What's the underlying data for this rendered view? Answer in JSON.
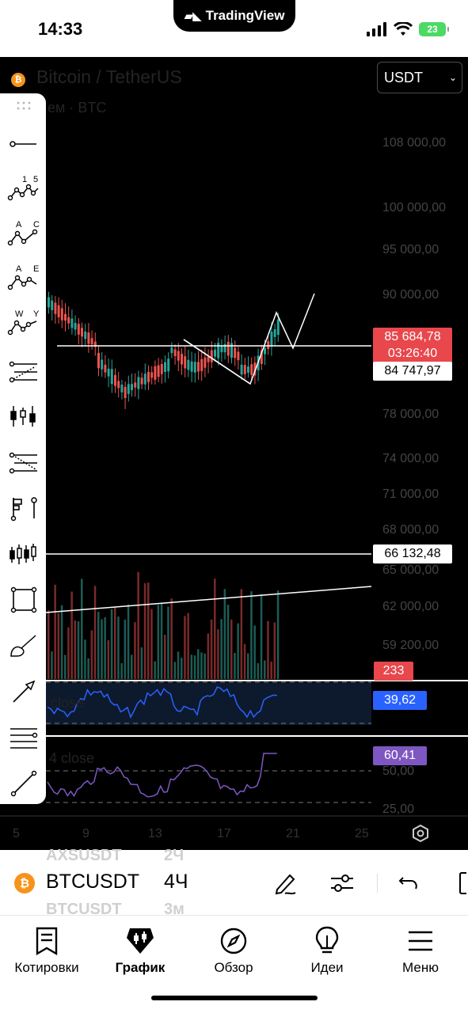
{
  "status_bar": {
    "time": "14:33",
    "app_banner": "TradingView",
    "battery": "23"
  },
  "chart": {
    "symbol_title": "Bitcoin / TetherUS",
    "symbol_subtitle": "ем · BTC",
    "currency_select": "USDT",
    "price_axis": [
      "108 000,00",
      "100 000,00",
      "95 000,00",
      "90 000,00",
      "78 000,00",
      "74 000,00",
      "71 000,00",
      "68 000,00",
      "65 000,00",
      "62 000,00",
      "59 200,00"
    ],
    "current_price": "85 684,78",
    "countdown": "03:26:40",
    "level_price": "84 747,97",
    "volume_level": "66 132,48",
    "volume_value": "233",
    "rsi_value": "39,62",
    "rsi_label": "close",
    "osc_value": "60,41",
    "osc_label": "4 close",
    "osc_axis": [
      "50,00",
      "25,00"
    ],
    "dates": [
      "5",
      "9",
      "13",
      "17",
      "21",
      "25"
    ],
    "colors": {
      "up": "#26a69a",
      "down": "#ef5350",
      "price_tag": "#e8474c",
      "rsi_tag": "#2962ff",
      "osc_tag": "#7e57c2"
    }
  },
  "toolbar": {
    "tools": [
      "drag-handle-icon",
      "trend-line-icon",
      "elliott-wave-15-icon",
      "abc-pattern-icon",
      "ae-pattern-icon",
      "wy-pattern-icon",
      "fib-retracement-icon",
      "long-short-icon",
      "fib-extension-icon",
      "forecast-icon",
      "candles-pattern-icon",
      "rectangle-icon",
      "brush-icon",
      "arrow-icon",
      "multi-line-icon",
      "line-icon"
    ],
    "elliott_labels": [
      "1",
      "5"
    ],
    "abc_labels": [
      "A",
      "C"
    ],
    "ae_labels": [
      "A",
      "E"
    ],
    "wy_labels": [
      "W",
      "Y"
    ]
  },
  "bottom": {
    "ghost_top": [
      "AXSUSDT",
      "2Ч"
    ],
    "ghost_bottom": [
      "BTCUSDT",
      "3м"
    ],
    "symbol": "BTCUSDT",
    "timeframe": "4Ч",
    "tabs": [
      {
        "label": "Котировки",
        "icon": "quotes-icon"
      },
      {
        "label": "График",
        "icon": "chart-icon"
      },
      {
        "label": "Обзор",
        "icon": "compass-icon"
      },
      {
        "label": "Идеи",
        "icon": "ideas-icon"
      },
      {
        "label": "Меню",
        "icon": "menu-icon"
      }
    ]
  }
}
